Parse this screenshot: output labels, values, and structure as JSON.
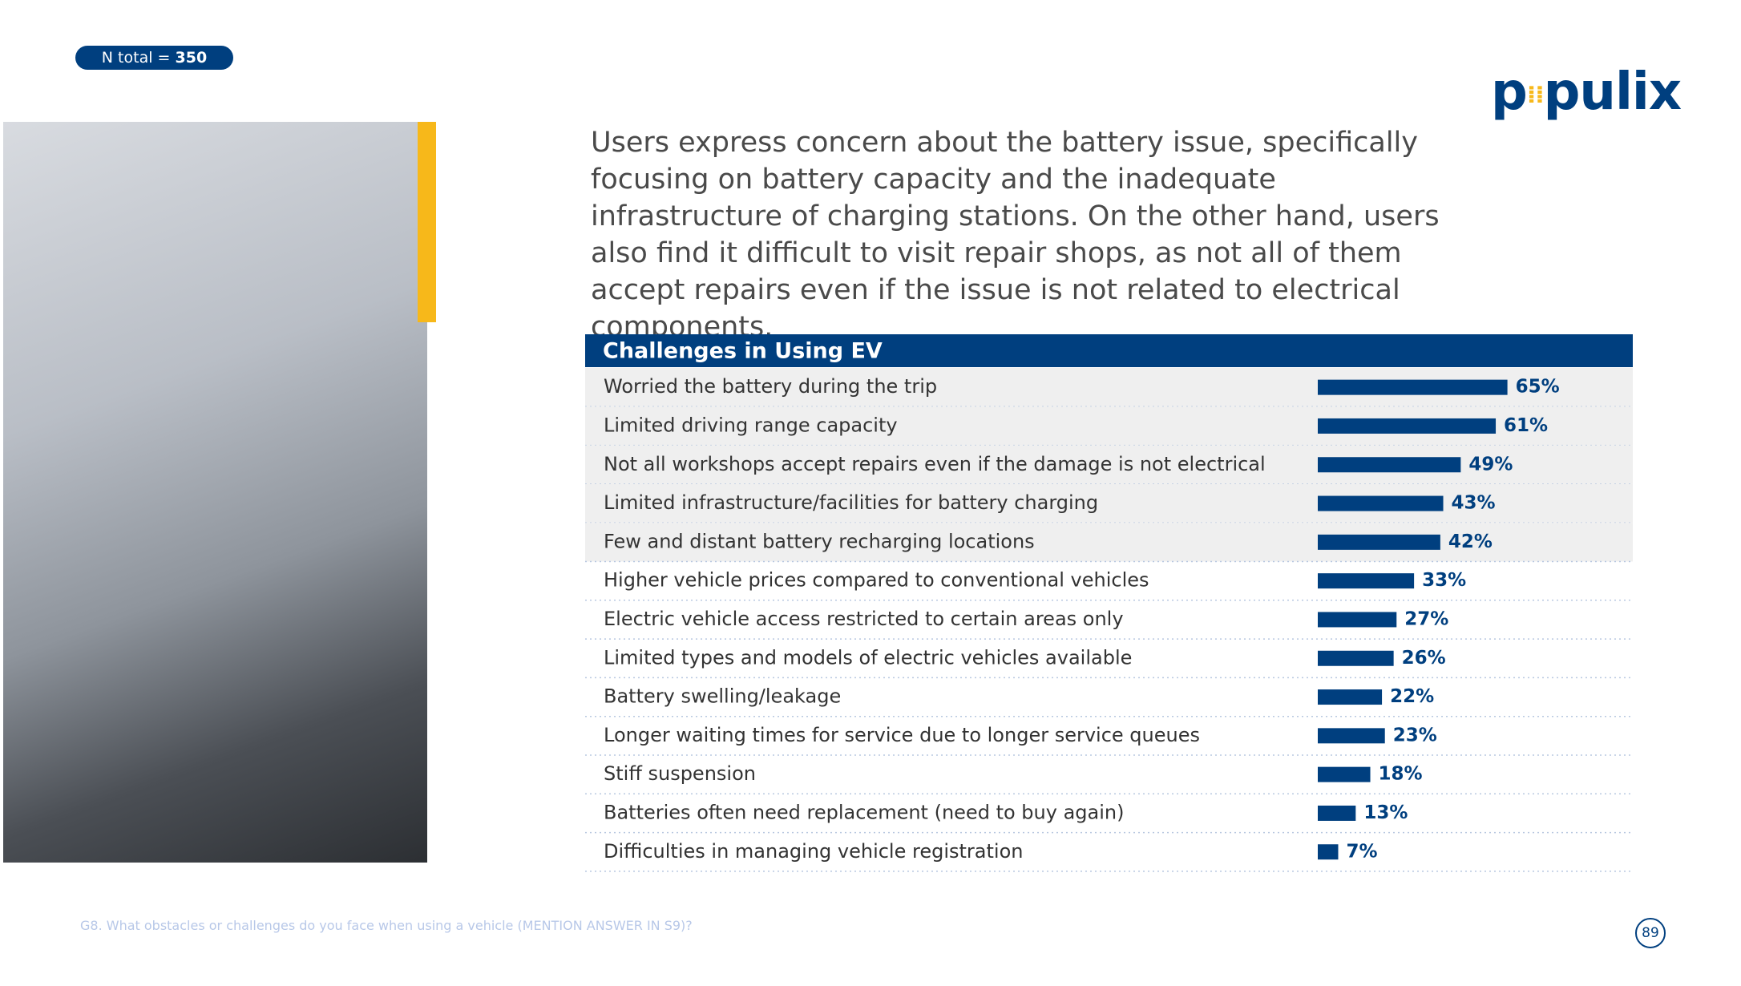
{
  "n_total": {
    "label": "N total =",
    "value": 350
  },
  "logo": {
    "left": "p",
    "right": "pulix"
  },
  "description": "Users express concern about the battery issue, specifically focusing on battery capacity and the inadequate infrastructure of charging stations. On the other hand, users also find it difficult to visit repair shops, as not all of them accept repairs even if the issue is not related to electrical components.",
  "chart_data": {
    "type": "hbar",
    "title": "Challenges in Using EV",
    "categories": [
      "Worried the battery during the trip",
      "Limited driving range capacity",
      "Not all workshops accept repairs even if the damage is not electrical",
      "Limited infrastructure/facilities for battery charging",
      "Few and distant battery recharging locations",
      "Higher vehicle prices compared to conventional vehicles",
      "Electric vehicle access restricted to certain areas only",
      "Limited types and models of electric vehicles available",
      "Battery swelling/leakage",
      "Longer waiting times for service due to longer service queues",
      "Stiff suspension",
      "Batteries often need replacement (need to buy again)",
      "Difficulties in managing vehicle registration"
    ],
    "values": [
      65,
      61,
      49,
      43,
      42,
      33,
      27,
      26,
      22,
      23,
      18,
      13,
      7
    ],
    "value_labels": [
      "65%",
      "61%",
      "49%",
      "43%",
      "42%",
      "33%",
      "27%",
      "26%",
      "22%",
      "23%",
      "18%",
      "13%",
      "7%"
    ],
    "color": "#003f7f"
  },
  "footnote": "G8. What obstacles or challenges do you face when using a vehicle (MENTION ANSWER IN S9)?",
  "page_number": 89
}
